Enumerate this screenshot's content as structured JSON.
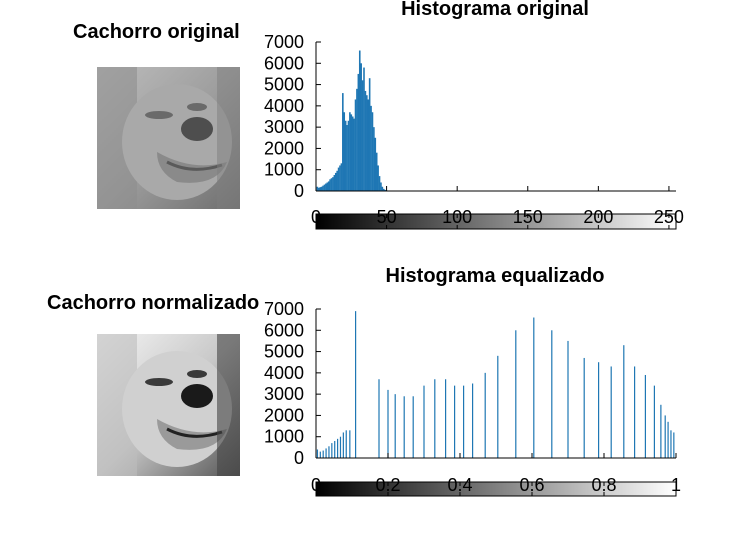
{
  "images": [
    {
      "title": "Cachorro original"
    },
    {
      "title": "Cachorro normalizado"
    }
  ],
  "colors": {
    "bars": "#1f77b4",
    "axis": "#000000",
    "background": "#ffffff"
  },
  "chart_data": [
    {
      "type": "bar",
      "title": "Histograma original",
      "xlabel": "",
      "ylabel": "",
      "xlim": [
        0,
        255
      ],
      "ylim": [
        0,
        7000
      ],
      "xticks": [
        0,
        50,
        100,
        150,
        200,
        250
      ],
      "yticks": [
        0,
        1000,
        2000,
        3000,
        4000,
        5000,
        6000,
        7000
      ],
      "xtick_labels": [
        "0",
        "50",
        "100",
        "150",
        "200",
        "250"
      ],
      "ytick_labels": [
        "0",
        "1000",
        "2000",
        "3000",
        "4000",
        "5000",
        "6000",
        "7000"
      ],
      "colorbar": {
        "from": "black",
        "to": "white"
      },
      "x": [
        1,
        2,
        3,
        4,
        5,
        6,
        7,
        8,
        9,
        10,
        11,
        12,
        13,
        14,
        15,
        16,
        17,
        18,
        19,
        20,
        21,
        22,
        23,
        24,
        25,
        26,
        27,
        28,
        29,
        30,
        31,
        32,
        33,
        34,
        35,
        36,
        37,
        38,
        39,
        40,
        41,
        42,
        43,
        44,
        45,
        46,
        47,
        48,
        49,
        50,
        51,
        52
      ],
      "values": [
        200,
        150,
        180,
        200,
        250,
        300,
        350,
        400,
        450,
        550,
        600,
        650,
        750,
        850,
        950,
        1100,
        1200,
        1300,
        4600,
        3700,
        3300,
        3100,
        3300,
        3700,
        3600,
        3500,
        3400,
        4300,
        4800,
        5500,
        6600,
        6000,
        5200,
        5800,
        4700,
        4500,
        4300,
        5300,
        4000,
        3700,
        3000,
        2500,
        1800,
        1200,
        700,
        400,
        200,
        100,
        50,
        30,
        20,
        10
      ]
    },
    {
      "type": "bar",
      "title": "Histograma equalizado",
      "xlabel": "",
      "ylabel": "",
      "xlim": [
        0,
        1
      ],
      "ylim": [
        0,
        7000
      ],
      "xticks": [
        0,
        0.2,
        0.4,
        0.6,
        0.8,
        1
      ],
      "yticks": [
        0,
        1000,
        2000,
        3000,
        4000,
        5000,
        6000,
        7000
      ],
      "xtick_labels": [
        "0",
        "0.2",
        "0.4",
        "0.6",
        "0.8",
        "1"
      ],
      "ytick_labels": [
        "0",
        "1000",
        "2000",
        "3000",
        "4000",
        "5000",
        "6000",
        "7000"
      ],
      "colorbar": {
        "from": "black",
        "to": "white"
      },
      "x": [
        0.004,
        0.012,
        0.02,
        0.028,
        0.036,
        0.044,
        0.052,
        0.06,
        0.068,
        0.076,
        0.084,
        0.094,
        0.11,
        0.175,
        0.2,
        0.22,
        0.245,
        0.27,
        0.3,
        0.33,
        0.36,
        0.385,
        0.41,
        0.435,
        0.47,
        0.505,
        0.555,
        0.605,
        0.655,
        0.7,
        0.745,
        0.785,
        0.82,
        0.855,
        0.885,
        0.915,
        0.94,
        0.958,
        0.97,
        0.978,
        0.986,
        0.994
      ],
      "values": [
        400,
        300,
        350,
        450,
        550,
        700,
        800,
        900,
        1000,
        1200,
        1300,
        1300,
        6900,
        3700,
        3200,
        3000,
        2900,
        2900,
        3400,
        3700,
        3700,
        3400,
        3400,
        3500,
        4000,
        4800,
        6000,
        6600,
        6000,
        5500,
        4700,
        4500,
        4300,
        5300,
        4300,
        3900,
        3400,
        2500,
        2000,
        1700,
        1300,
        1200
      ]
    }
  ]
}
